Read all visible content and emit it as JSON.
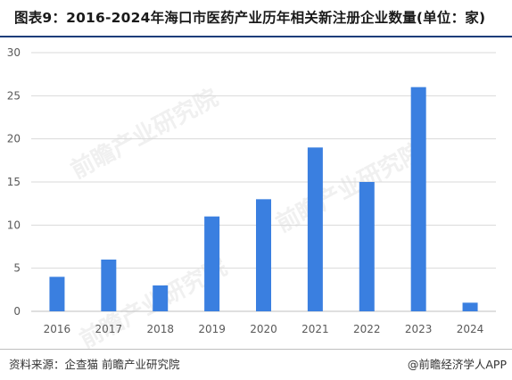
{
  "title": "图表9：2016-2024年海口市医药产业历年相关新注册企业数量(单位：家)",
  "footer": {
    "source": "资料来源：企查猫 前瞻产业研究院",
    "brand": "@前瞻经济学人APP"
  },
  "watermark": {
    "text": "前瞻产业研究院"
  },
  "colors": {
    "bar": "#3a7fe0",
    "grid": "#d9d9d9",
    "axis": "#bfbfbf",
    "tick_text": "#595959",
    "title_rule": "#1d3d7a"
  },
  "chart_data": {
    "type": "bar",
    "title": "",
    "xlabel": "",
    "ylabel": "",
    "categories": [
      "2016",
      "2017",
      "2018",
      "2019",
      "2020",
      "2021",
      "2022",
      "2023",
      "2024"
    ],
    "values": [
      4,
      6,
      3,
      11,
      13,
      19,
      15,
      26,
      1
    ],
    "ylim": [
      0,
      30
    ],
    "yticks": [
      0,
      5,
      10,
      15,
      20,
      25,
      30
    ],
    "grid": true,
    "legend": "none"
  }
}
